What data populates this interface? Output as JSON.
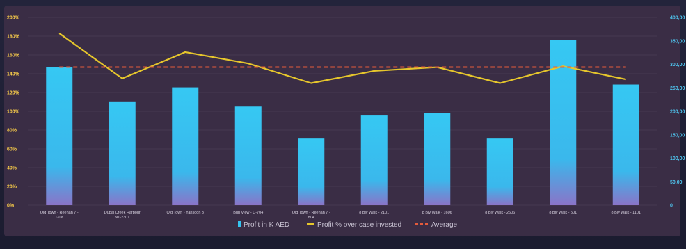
{
  "chart_data": {
    "type": "bar",
    "categories": [
      "Old Town - Reehan 7 - G0x",
      "Dubai Creek Harbour NT-2301",
      "Old Town - Yansoon 3",
      "Burj View - C-704",
      "Old Town - Reehan 7 - 804",
      "8 Blv Walk - 2101",
      "8 Blv Walk - 1606",
      "8 Blv Walk - 2606",
      "8 Blv Walk - 501",
      "8 Blv Walk - 1101"
    ],
    "series": [
      {
        "name": "Profit in K AED",
        "type": "bar",
        "axis": "right",
        "color": "#35c4f0",
        "values": [
          294000,
          221000,
          251000,
          210000,
          142000,
          191000,
          196000,
          142000,
          352000,
          257000
        ]
      },
      {
        "name": "Profit % over case invested",
        "type": "line",
        "axis": "left",
        "color": "#e6c62c",
        "values": [
          1.83,
          1.35,
          1.63,
          1.51,
          1.3,
          1.43,
          1.47,
          1.3,
          1.48,
          1.34
        ]
      },
      {
        "name": "Average",
        "type": "line",
        "axis": "left",
        "style": "dashed",
        "color": "#e45b3c",
        "values": [
          1.47,
          1.47,
          1.47,
          1.47,
          1.47,
          1.47,
          1.47,
          1.47,
          1.47,
          1.47
        ]
      }
    ],
    "y_left": {
      "ylim": [
        0,
        2.0
      ],
      "ticks": [
        "0%",
        "20%",
        "40%",
        "60%",
        "80%",
        "100%",
        "120%",
        "140%",
        "160%",
        "180%",
        "200%"
      ]
    },
    "y_right": {
      "ylim": [
        0,
        400000
      ],
      "ticks": [
        "0",
        "50,00",
        "100,00",
        "150,00",
        "200,00",
        "250,00",
        "300,00",
        "350,00",
        "400,00"
      ]
    },
    "grid": true,
    "legend": "bottom",
    "legend_labels": [
      "Profit in K AED",
      "Profit % over case invested",
      "Average"
    ]
  }
}
